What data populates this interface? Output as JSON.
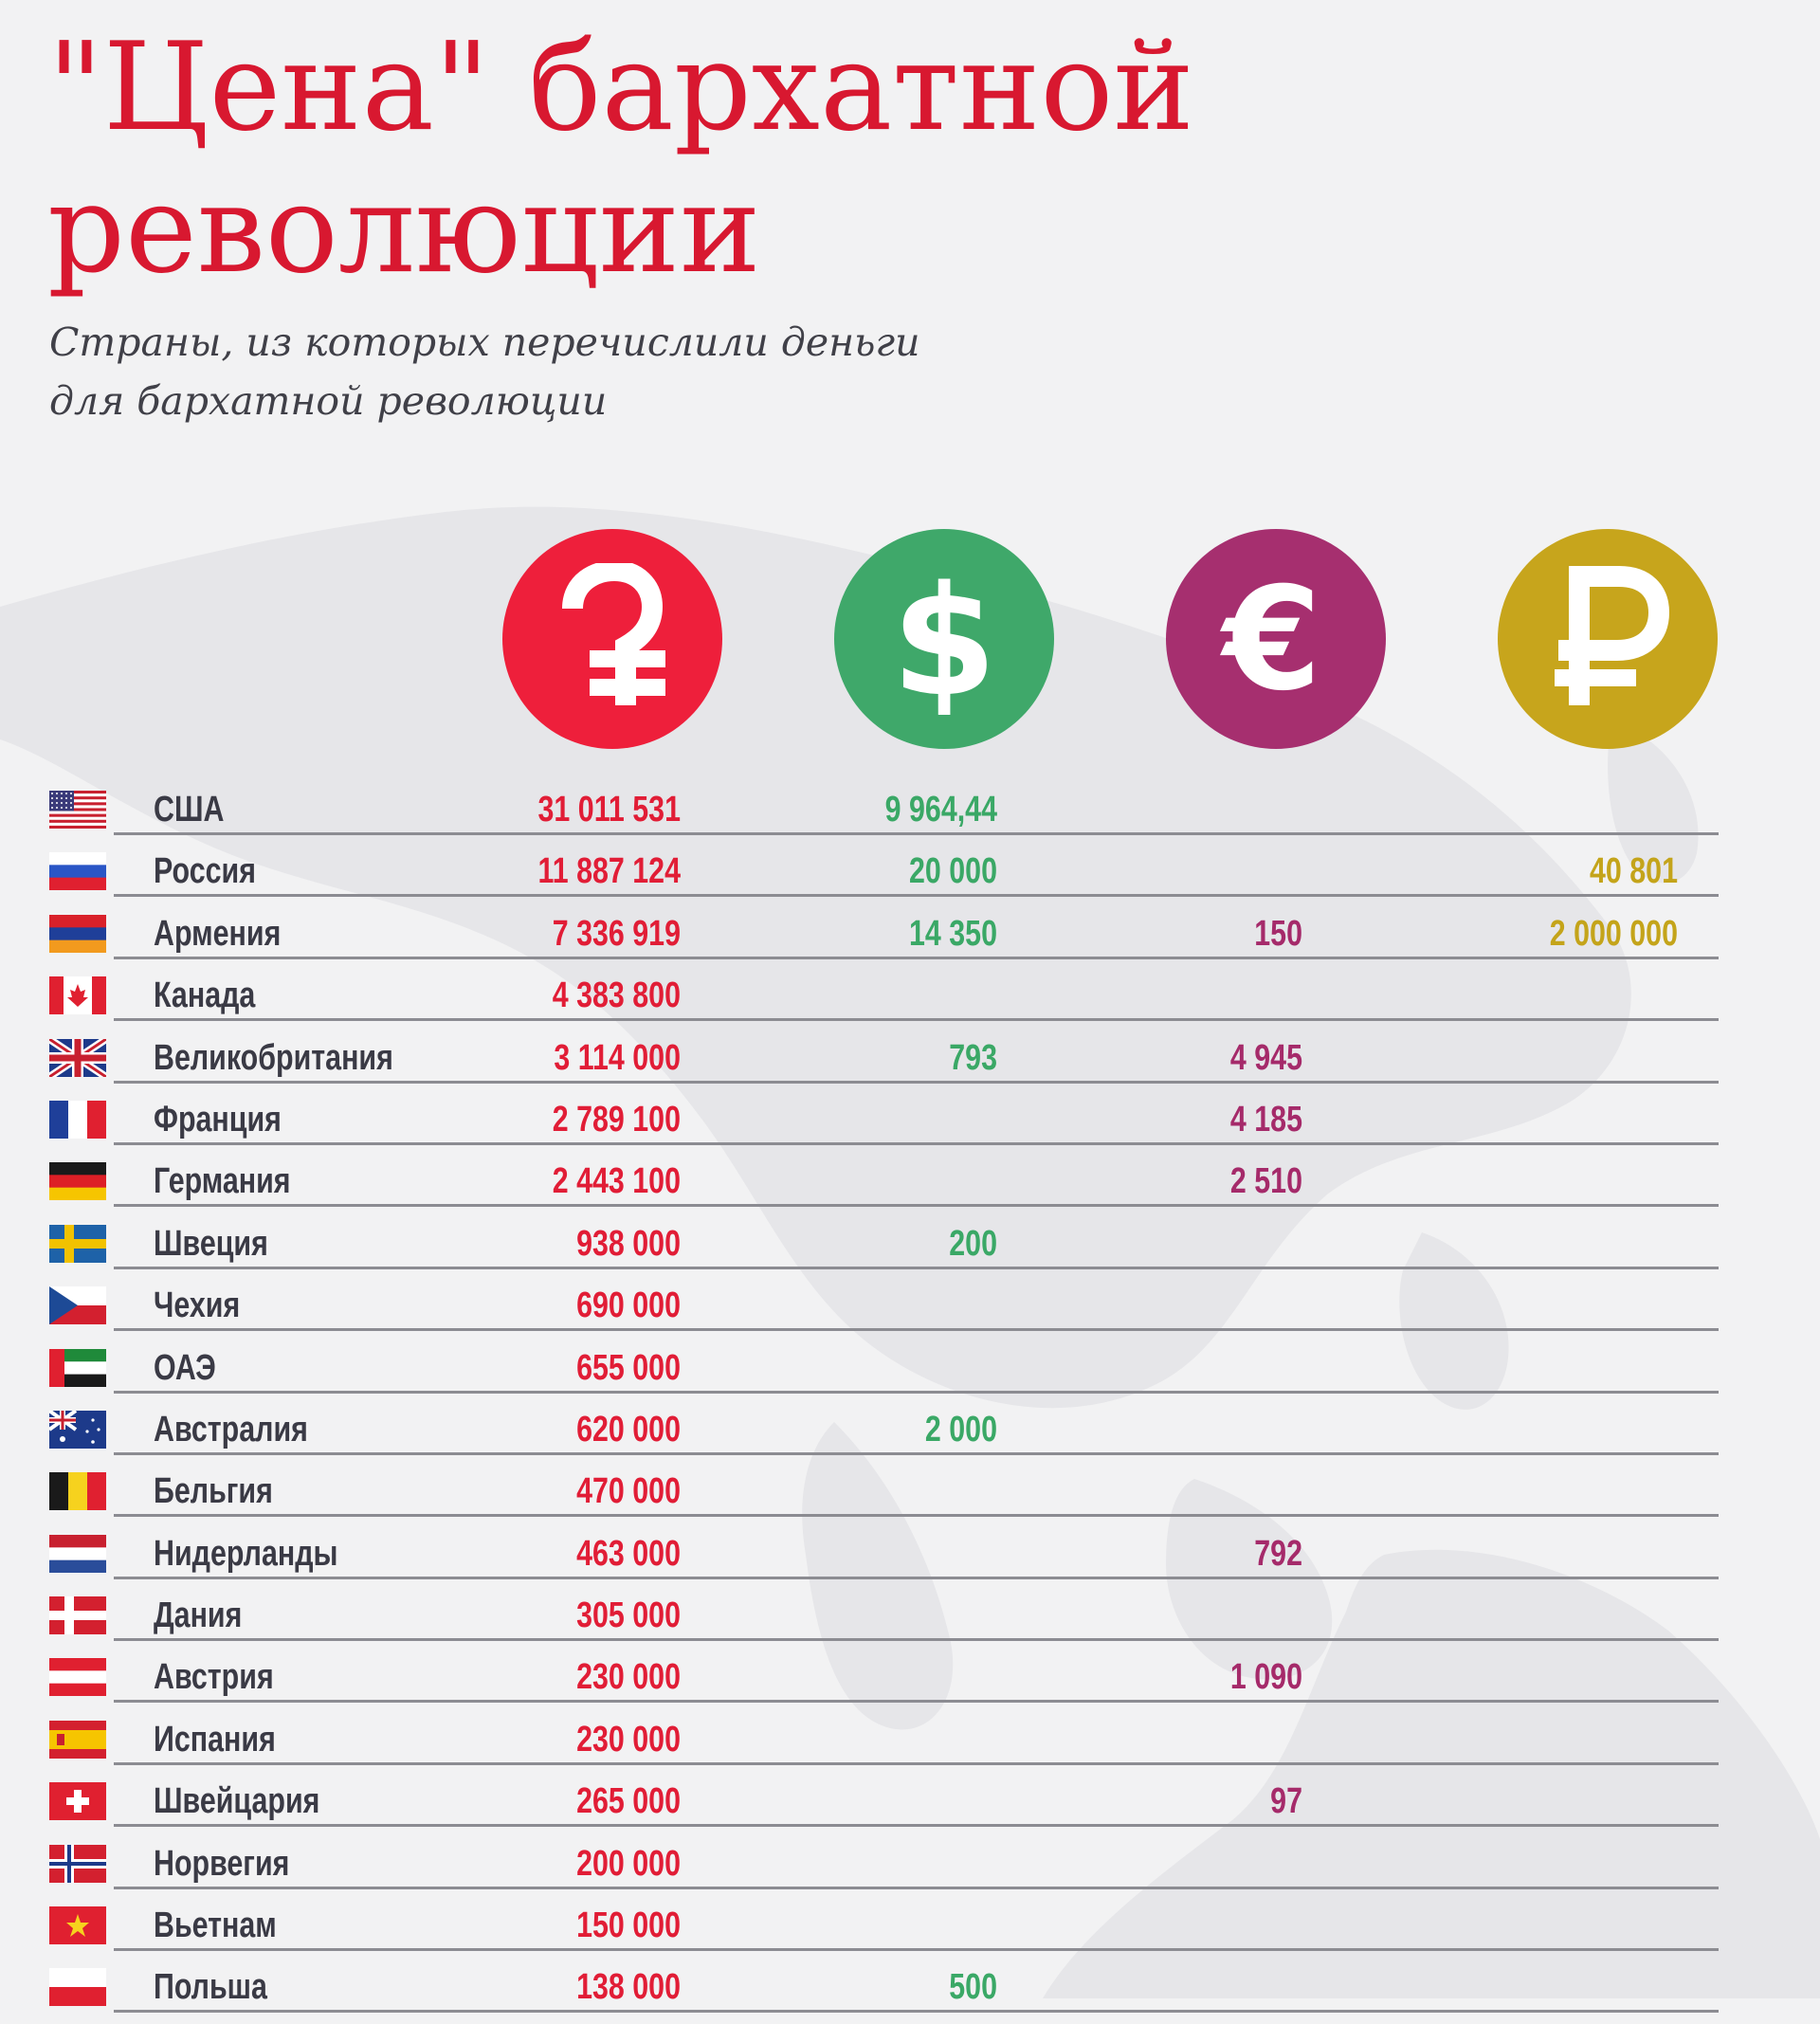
{
  "title_lines": [
    "\"Цена\" бархатной",
    "революции"
  ],
  "subtitle_lines": [
    "Страны, из которых перечислили деньги",
    "для бархатной революции"
  ],
  "currencies": [
    {
      "key": "amd",
      "icon": "dram-icon",
      "color": "#ee1f3b"
    },
    {
      "key": "usd",
      "icon": "dollar-icon",
      "color": "#3fa86a"
    },
    {
      "key": "eur",
      "icon": "euro-icon",
      "color": "#a62f6f"
    },
    {
      "key": "rub",
      "icon": "ruble-icon",
      "color": "#c7a51c"
    }
  ],
  "chart_data": {
    "type": "table",
    "columns": [
      "amd",
      "usd",
      "eur",
      "rub"
    ],
    "rows": [
      {
        "country": "США",
        "flag": "us",
        "amd": "31 011 531",
        "usd": "9 964,44",
        "eur": "",
        "rub": ""
      },
      {
        "country": "Россия",
        "flag": "ru",
        "amd": "11 887 124",
        "usd": "20 000",
        "eur": "",
        "rub": "40 801"
      },
      {
        "country": "Армения",
        "flag": "am",
        "amd": "7 336 919",
        "usd": "14 350",
        "eur": "150",
        "rub": "2 000 000"
      },
      {
        "country": "Канада",
        "flag": "ca",
        "amd": "4 383 800",
        "usd": "",
        "eur": "",
        "rub": ""
      },
      {
        "country": "Великобритания",
        "flag": "gb",
        "amd": "3 114 000",
        "usd": "793",
        "eur": "4 945",
        "rub": ""
      },
      {
        "country": "Франция",
        "flag": "fr",
        "amd": "2 789 100",
        "usd": "",
        "eur": "4 185",
        "rub": ""
      },
      {
        "country": "Германия",
        "flag": "de",
        "amd": "2 443 100",
        "usd": "",
        "eur": "2 510",
        "rub": ""
      },
      {
        "country": "Швеция",
        "flag": "se",
        "amd": "938 000",
        "usd": "200",
        "eur": "",
        "rub": ""
      },
      {
        "country": "Чехия",
        "flag": "cz",
        "amd": "690 000",
        "usd": "",
        "eur": "",
        "rub": ""
      },
      {
        "country": "ОАЭ",
        "flag": "ae",
        "amd": "655 000",
        "usd": "",
        "eur": "",
        "rub": ""
      },
      {
        "country": "Австралия",
        "flag": "au",
        "amd": "620 000",
        "usd": "2 000",
        "eur": "",
        "rub": ""
      },
      {
        "country": "Бельгия",
        "flag": "be",
        "amd": "470 000",
        "usd": "",
        "eur": "",
        "rub": ""
      },
      {
        "country": "Нидерланды",
        "flag": "nl",
        "amd": "463 000",
        "usd": "",
        "eur": "792",
        "rub": ""
      },
      {
        "country": "Дания",
        "flag": "dk",
        "amd": "305 000",
        "usd": "",
        "eur": "",
        "rub": ""
      },
      {
        "country": "Австрия",
        "flag": "at",
        "amd": "230 000",
        "usd": "",
        "eur": "1 090",
        "rub": ""
      },
      {
        "country": "Испания",
        "flag": "es",
        "amd": "230 000",
        "usd": "",
        "eur": "",
        "rub": ""
      },
      {
        "country": "Швейцария",
        "flag": "ch",
        "amd": "265 000",
        "usd": "",
        "eur": "97",
        "rub": ""
      },
      {
        "country": "Норвегия",
        "flag": "no",
        "amd": "200 000",
        "usd": "",
        "eur": "",
        "rub": ""
      },
      {
        "country": "Вьетнам",
        "flag": "vn",
        "amd": "150 000",
        "usd": "",
        "eur": "",
        "rub": ""
      },
      {
        "country": "Польша",
        "flag": "pl",
        "amd": "138 000",
        "usd": "500",
        "eur": "",
        "rub": ""
      }
    ]
  }
}
